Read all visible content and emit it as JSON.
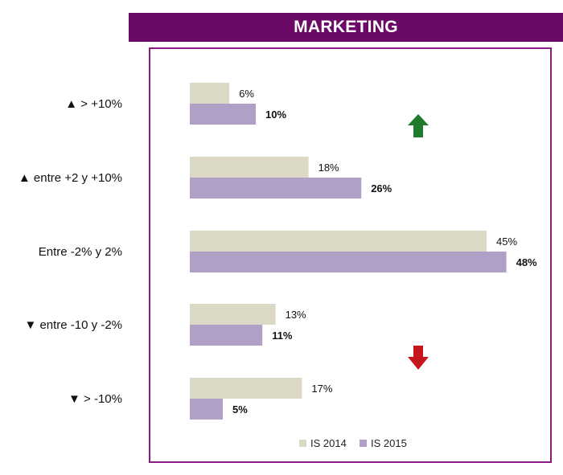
{
  "header": {
    "title": "MARKETING"
  },
  "chart_data": {
    "type": "bar",
    "orientation": "horizontal",
    "categories": [
      "▲ > +10%",
      "▲ entre +2 y +10%",
      "Entre -2% y 2%",
      "▼ entre -10 y -2%",
      "▼ > -10%"
    ],
    "series": [
      {
        "name": "IS 2014",
        "values": [
          6,
          18,
          45,
          13,
          17
        ],
        "labels": [
          "6%",
          "18%",
          "45%",
          "13%",
          "17%"
        ]
      },
      {
        "name": "IS 2015",
        "values": [
          10,
          26,
          48,
          11,
          5
        ],
        "labels": [
          "10%",
          "26%",
          "48%",
          "11%",
          "5%"
        ]
      }
    ],
    "xlim": [
      0,
      50
    ],
    "grid": false,
    "legend_position": "bottom",
    "colors": {
      "IS 2014": "#dcd8c6",
      "IS 2015": "#b09fc6"
    },
    "annotations": {
      "up_arrow_color": "#1f7a2c",
      "down_arrow_color": "#c4161c"
    }
  }
}
